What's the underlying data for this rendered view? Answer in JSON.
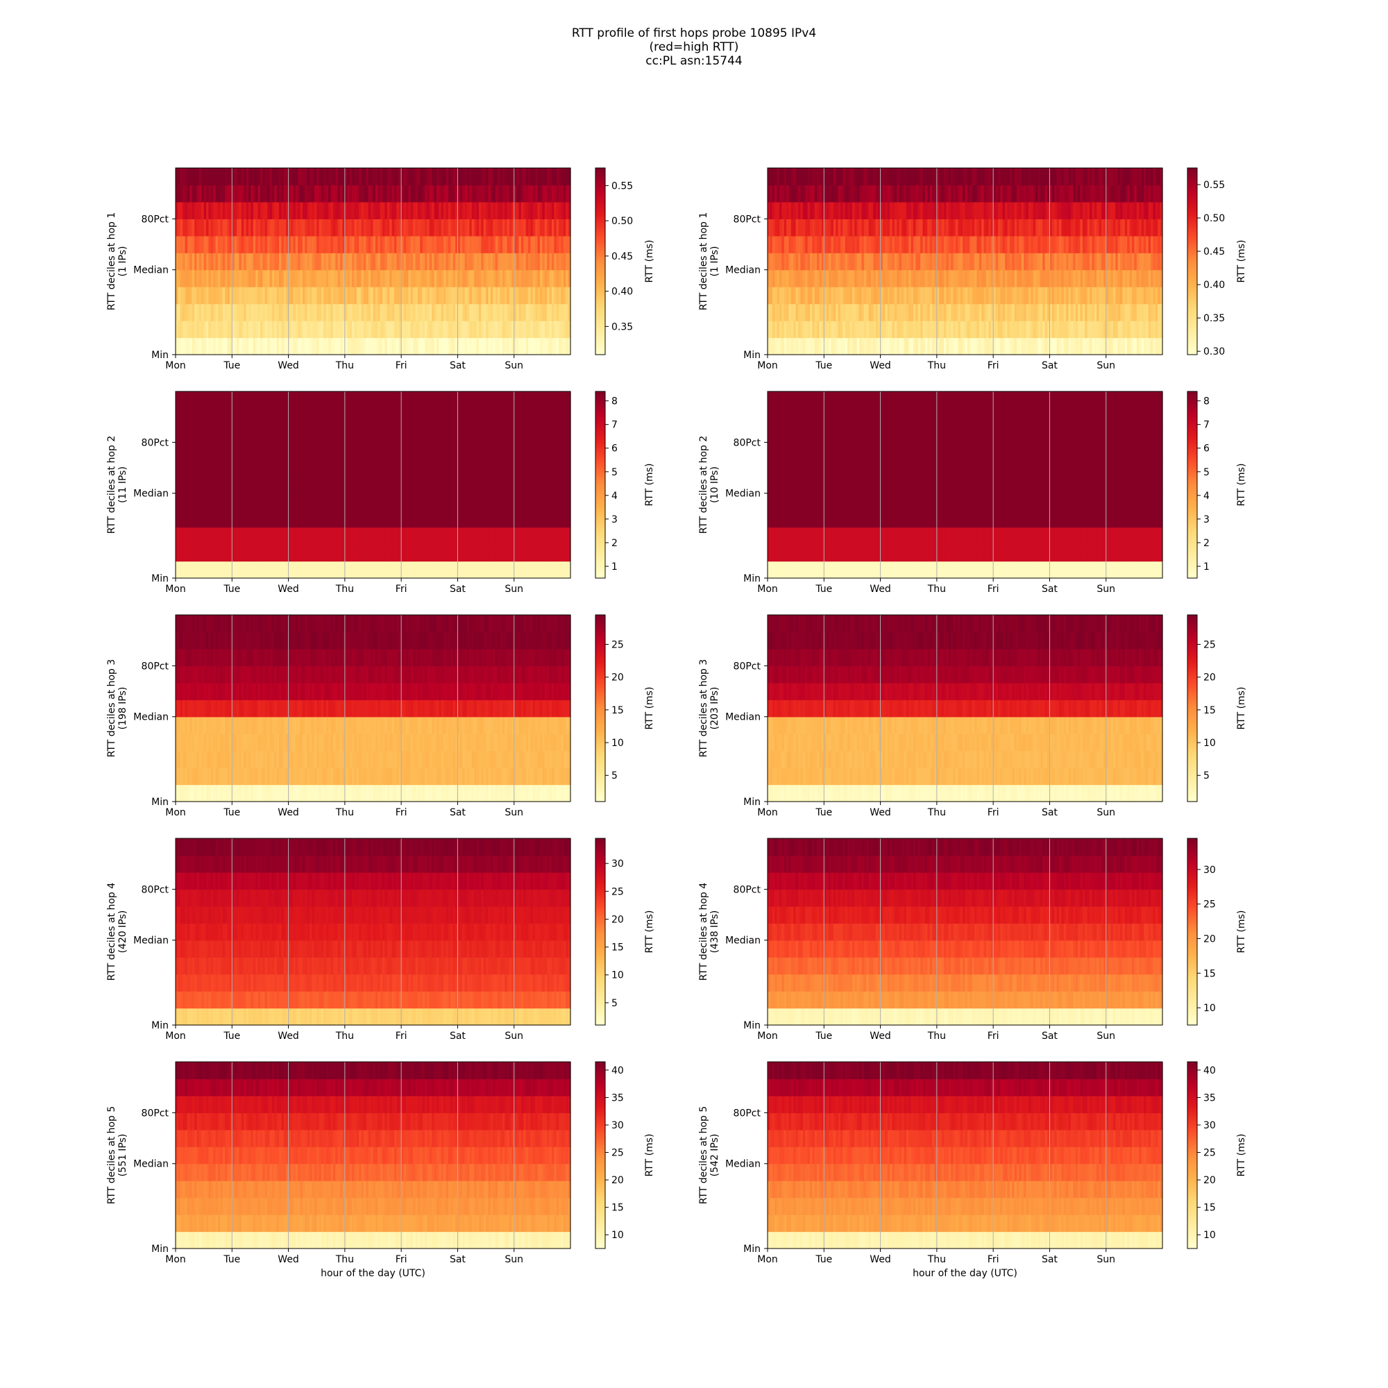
{
  "title_lines": [
    "RTT profile of first hops probe 10895 IPv4",
    "(red=high RTT)",
    "cc:PL asn:15744"
  ],
  "colors": {
    "colormap": "YlOrRd",
    "gridline": "#b0b0b0"
  },
  "x_tick_labels": [
    "Mon",
    "Tue",
    "Wed",
    "Thu",
    "Fri",
    "Sat",
    "Sun"
  ],
  "y_tick_labels": [
    "Min",
    "Median",
    "80Pct"
  ],
  "colorbar_label": "RTT (ms)",
  "xlabel": "hour of the day (UTC)",
  "chart_data": [
    {
      "type": "heatmap",
      "ylabel": "RTT deciles at hop 1",
      "ips": "(1 IPs)",
      "cbar_ticks": [
        "0.35",
        "0.40",
        "0.45",
        "0.50",
        "0.55"
      ],
      "cbar_range": [
        0.31,
        0.575
      ],
      "deciles": [
        0.32,
        0.36,
        0.375,
        0.395,
        0.42,
        0.445,
        0.47,
        0.495,
        0.52,
        0.56,
        0.575
      ],
      "noise": 0.015
    },
    {
      "type": "heatmap",
      "ylabel": "RTT deciles at hop 1",
      "ips": "(1 IPs)",
      "cbar_ticks": [
        "0.30",
        "0.35",
        "0.40",
        "0.45",
        "0.50",
        "0.55"
      ],
      "cbar_range": [
        0.295,
        0.575
      ],
      "deciles": [
        0.31,
        0.36,
        0.375,
        0.395,
        0.42,
        0.445,
        0.47,
        0.495,
        0.52,
        0.56,
        0.575
      ],
      "noise": 0.015
    },
    {
      "type": "heatmap",
      "ylabel": "RTT deciles at hop 2",
      "ips": "(11 IPs)",
      "cbar_ticks": [
        "1",
        "2",
        "3",
        "4",
        "5",
        "6",
        "7",
        "8"
      ],
      "cbar_range": [
        0.5,
        8.4
      ],
      "deciles": [
        1.0,
        7.0,
        7.0,
        8.3,
        8.3,
        8.3,
        8.3,
        8.3,
        8.3,
        8.3,
        8.3
      ],
      "noise": 0
    },
    {
      "type": "heatmap",
      "ylabel": "RTT deciles at hop 2",
      "ips": "(10 IPs)",
      "cbar_ticks": [
        "1",
        "2",
        "3",
        "4",
        "5",
        "6",
        "7",
        "8"
      ],
      "cbar_range": [
        0.5,
        8.4
      ],
      "deciles": [
        0.8,
        7.0,
        7.0,
        8.3,
        8.3,
        8.3,
        8.3,
        8.3,
        8.3,
        8.3,
        8.3
      ],
      "noise": 0
    },
    {
      "type": "heatmap",
      "ylabel": "RTT deciles at hop 3",
      "ips": "(198 IPs)",
      "cbar_ticks": [
        "5",
        "10",
        "15",
        "20",
        "25"
      ],
      "cbar_range": [
        1,
        29.5
      ],
      "deciles": [
        2,
        11,
        11,
        11,
        11,
        22,
        26,
        27,
        28,
        29,
        29
      ],
      "noise": 0.5
    },
    {
      "type": "heatmap",
      "ylabel": "RTT deciles at hop 3",
      "ips": "(203 IPs)",
      "cbar_ticks": [
        "5",
        "10",
        "15",
        "20",
        "25"
      ],
      "cbar_range": [
        1,
        29.5
      ],
      "deciles": [
        2,
        11,
        11,
        11,
        11,
        22,
        25,
        27,
        28,
        29,
        29
      ],
      "noise": 0.5
    },
    {
      "type": "heatmap",
      "ylabel": "RTT deciles at hop 4",
      "ips": "(420 IPs)",
      "cbar_ticks": [
        "5",
        "10",
        "15",
        "20",
        "25",
        "30"
      ],
      "cbar_range": [
        1,
        34.5
      ],
      "deciles": [
        10,
        21,
        23,
        24,
        25,
        26,
        27,
        28,
        30,
        33,
        34
      ],
      "noise": 0.6
    },
    {
      "type": "heatmap",
      "ylabel": "RTT deciles at hop 4",
      "ips": "(438 IPs)",
      "cbar_ticks": [
        "10",
        "15",
        "20",
        "25",
        "30"
      ],
      "cbar_range": [
        7.5,
        34.5
      ],
      "deciles": [
        9,
        20,
        21.5,
        23,
        24.5,
        26,
        27.5,
        29,
        31,
        33,
        34
      ],
      "noise": 0.6
    },
    {
      "type": "heatmap",
      "ylabel": "RTT deciles at hop 5",
      "ips": "(551 IPs)",
      "cbar_ticks": [
        "10",
        "15",
        "20",
        "25",
        "30",
        "35",
        "40"
      ],
      "cbar_range": [
        7.5,
        41.5
      ],
      "deciles": [
        10,
        22,
        23.5,
        24.5,
        27,
        28.5,
        30,
        32,
        34,
        38,
        41
      ],
      "noise": 0.8
    },
    {
      "type": "heatmap",
      "ylabel": "RTT deciles at hop 5",
      "ips": "(542 IPs)",
      "cbar_ticks": [
        "10",
        "15",
        "20",
        "25",
        "30",
        "35",
        "40"
      ],
      "cbar_range": [
        7.5,
        41.5
      ],
      "deciles": [
        10,
        22,
        23.5,
        25,
        27,
        28.5,
        30,
        32,
        34,
        38,
        41
      ],
      "noise": 0.8
    }
  ]
}
